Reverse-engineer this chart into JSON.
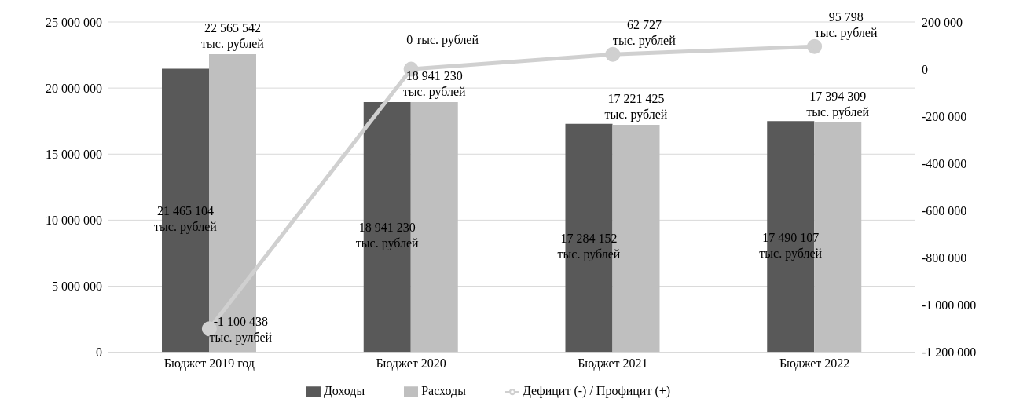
{
  "chart_data": {
    "type": "bar",
    "categories": [
      "Бюджет 2019 год",
      "Бюджет 2020",
      "Бюджет 2021",
      "Бюджет 2022"
    ],
    "series": [
      {
        "name": "Доходы",
        "color": "#595959",
        "values": [
          21465104,
          18941230,
          17284152,
          17490107
        ],
        "value_labels": [
          "21 465 104\nтыс. рублей",
          "18 941 230\nтыс. рублей",
          "17 284 152\nтыс. рублей",
          "17 490 107\nтыс. рублей"
        ]
      },
      {
        "name": "Расходы",
        "color": "#bfbfbf",
        "values": [
          22565542,
          18941230,
          17221425,
          17394309
        ],
        "value_labels": [
          "22 565 542\nтыс. рублей",
          "18 941 230\nтыс. рублей",
          "17 221 425\nтыс. рублей",
          "17 394 309\nтыс. рублей"
        ]
      },
      {
        "name": "Дефицит (-) / Профицит (+)",
        "type": "line",
        "axis": "y2",
        "color": "#d0d0d0",
        "values": [
          -1100438,
          0,
          62727,
          95798
        ],
        "value_labels": [
          "-1 100 438\nтыс. рулбей",
          "0 тыс. рублей",
          "62 727\nтыс. рублей",
          "95 798\nтыс. рублей"
        ]
      }
    ],
    "ylim": [
      0,
      25000000
    ],
    "yticks": [
      0,
      {
        "value": 5000000,
        "label": "5 000 000"
      },
      {
        "value": 10000000,
        "label": "10 000 000"
      },
      {
        "value": 15000000,
        "label": "15 000 000"
      },
      {
        "value": 20000000,
        "label": "20 000 000"
      },
      {
        "value": 25000000,
        "label": "25 000 000"
      }
    ],
    "y2lim": [
      -1200000,
      200000
    ],
    "y2ticks": [
      {
        "value": -1200000,
        "label": "-1 200 000"
      },
      {
        "value": -1000000,
        "label": "-1 000 000"
      },
      {
        "value": -800000,
        "label": "-800 000"
      },
      {
        "value": -600000,
        "label": "-600 000"
      },
      {
        "value": -400000,
        "label": "-400 000"
      },
      {
        "value": -200000,
        "label": "-200 000"
      },
      0,
      {
        "value": 200000,
        "label": "200 000"
      }
    ],
    "grid": "y",
    "legend": "bottom",
    "marker": "circle"
  }
}
